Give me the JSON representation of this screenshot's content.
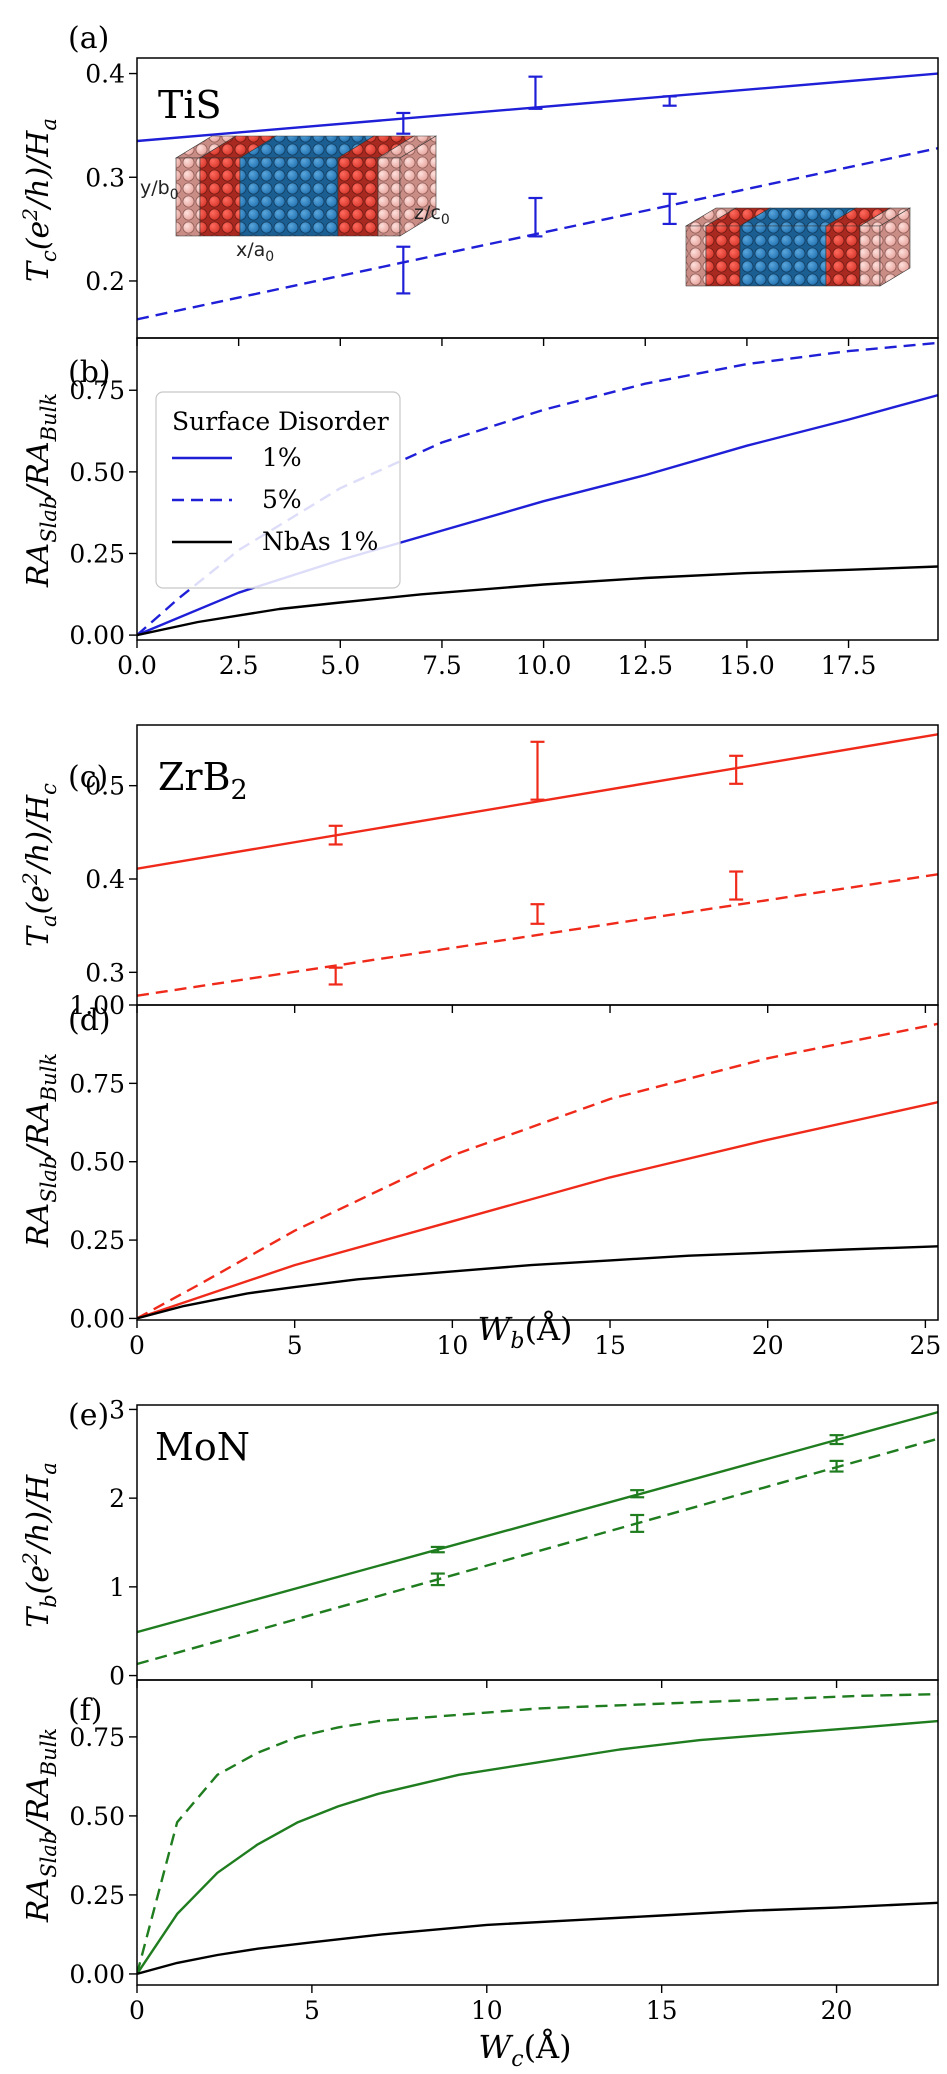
{
  "colors": {
    "TiS": "#1f1fd8",
    "ZrB2": "#f02a1a",
    "MoN": "#1f7d1f",
    "NbAs": "#000000"
  },
  "legend": {
    "title": "Surface Disorder",
    "entries": [
      {
        "label": "1%",
        "style": "solid"
      },
      {
        "label": "5%",
        "style": "dashed"
      },
      {
        "label": "NbAs 1%",
        "style": "solid-black"
      }
    ]
  },
  "inset_labels": {
    "y": "y/b",
    "y_sub": "0",
    "z": "z/c",
    "z_sub": "0",
    "x": "x/a",
    "x_sub": "0"
  },
  "chart_data": [
    {
      "panel_label": "(a)",
      "material": "TiS",
      "material_sub": "",
      "type": "line",
      "ylabel": "T_c(e^2/h)/H_a",
      "xlim": [
        0,
        19.7
      ],
      "ylim": [
        0.145,
        0.415
      ],
      "yticks": [
        0.2,
        0.3,
        0.4
      ],
      "yticklabels": [
        "0.2",
        "0.3",
        "0.4"
      ],
      "xticks": [
        0,
        2.5,
        5,
        7.5,
        10,
        12.5,
        15,
        17.5
      ],
      "xticklabels": [],
      "series": [
        {
          "style": "solid",
          "x": [
            0,
            19.7
          ],
          "y": [
            0.335,
            0.4
          ],
          "errorbars": [
            {
              "x": 6.55,
              "low": 0.342,
              "high": 0.362
            },
            {
              "x": 9.8,
              "low": 0.366,
              "high": 0.397
            },
            {
              "x": 13.1,
              "low": 0.369,
              "high": 0.378
            }
          ]
        },
        {
          "style": "dashed",
          "x": [
            0,
            19.7
          ],
          "y": [
            0.163,
            0.328
          ],
          "errorbars": [
            {
              "x": 6.55,
              "low": 0.188,
              "high": 0.233
            },
            {
              "x": 9.8,
              "low": 0.243,
              "high": 0.28
            },
            {
              "x": 13.1,
              "low": 0.255,
              "high": 0.284
            }
          ]
        }
      ]
    },
    {
      "panel_label": "(b)",
      "type": "line",
      "ylabel": "RA_Slab/RA_Bulk",
      "xlim": [
        0,
        19.7
      ],
      "ylim": [
        -0.015,
        0.91
      ],
      "yticks": [
        0,
        0.25,
        0.5,
        0.75
      ],
      "yticklabels": [
        "0.00",
        "0.25",
        "0.50",
        "0.75"
      ],
      "xticks": [
        0,
        2.5,
        5,
        7.5,
        10,
        12.5,
        15,
        17.5
      ],
      "xticklabels": [
        "0.0",
        "2.5",
        "5.0",
        "7.5",
        "10.0",
        "12.5",
        "15.0",
        "17.5"
      ],
      "series": [
        {
          "style": "solid",
          "x": [
            0,
            2.5,
            5,
            7.5,
            10,
            12.5,
            15,
            17.5,
            19.7
          ],
          "y": [
            0,
            0.13,
            0.23,
            0.32,
            0.41,
            0.49,
            0.58,
            0.66,
            0.735
          ]
        },
        {
          "style": "dashed",
          "x": [
            0,
            1,
            2.5,
            5,
            7.5,
            10,
            12.5,
            15,
            17.5,
            19.7
          ],
          "y": [
            0,
            0.11,
            0.26,
            0.45,
            0.59,
            0.69,
            0.77,
            0.83,
            0.87,
            0.895
          ]
        },
        {
          "style": "solid-black",
          "x": [
            0,
            1.5,
            3.5,
            5,
            7,
            10,
            12.5,
            15,
            17.5,
            19.7
          ],
          "y": [
            0,
            0.04,
            0.08,
            0.1,
            0.125,
            0.155,
            0.175,
            0.19,
            0.2,
            0.21
          ]
        }
      ]
    },
    {
      "panel_label": "(c)",
      "material": "ZrB",
      "material_sub": "2",
      "type": "line",
      "ylabel": "T_a(e^2/h)/H_c",
      "xlim": [
        0,
        25.4
      ],
      "ylim": [
        0.265,
        0.565
      ],
      "yticks": [
        0.3,
        0.4,
        0.5
      ],
      "yticklabels": [
        "0.3",
        "0.4",
        "0.5"
      ],
      "xticks": [
        0,
        5,
        10,
        15,
        20,
        25
      ],
      "xticklabels": [],
      "series": [
        {
          "style": "solid",
          "x": [
            0,
            25.4
          ],
          "y": [
            0.411,
            0.555
          ],
          "errorbars": [
            {
              "x": 6.3,
              "low": 0.437,
              "high": 0.457
            },
            {
              "x": 12.7,
              "low": 0.485,
              "high": 0.547
            },
            {
              "x": 19.0,
              "low": 0.502,
              "high": 0.532
            }
          ]
        },
        {
          "style": "dashed",
          "x": [
            0,
            25.4
          ],
          "y": [
            0.275,
            0.405
          ],
          "errorbars": [
            {
              "x": 6.3,
              "low": 0.287,
              "high": 0.305
            },
            {
              "x": 12.7,
              "low": 0.352,
              "high": 0.373
            },
            {
              "x": 19.0,
              "low": 0.378,
              "high": 0.408
            }
          ]
        }
      ]
    },
    {
      "panel_label": "(d)",
      "type": "line",
      "ylabel": "RA_Slab/RA_Bulk",
      "xlabel": "W_b(Å)",
      "xlim": [
        0,
        25.4
      ],
      "ylim": [
        -0.005,
        1.0
      ],
      "yticks": [
        0,
        0.25,
        0.5,
        0.75,
        1.0
      ],
      "yticklabels": [
        "0.00",
        "0.25",
        "0.50",
        "0.75",
        "1.00"
      ],
      "xticks": [
        0,
        5,
        10,
        15,
        20,
        25
      ],
      "xticklabels": [
        "0",
        "5",
        "10",
        "15",
        "20",
        "25"
      ],
      "series": [
        {
          "style": "solid",
          "x": [
            0,
            5,
            10,
            15,
            20,
            25.4
          ],
          "y": [
            0,
            0.17,
            0.31,
            0.45,
            0.57,
            0.69
          ]
        },
        {
          "style": "dashed",
          "x": [
            0,
            2,
            5,
            10,
            15,
            20,
            25.4
          ],
          "y": [
            0,
            0.11,
            0.28,
            0.52,
            0.7,
            0.83,
            0.94
          ]
        },
        {
          "style": "solid-black",
          "x": [
            0,
            1.5,
            3.5,
            5,
            7,
            10,
            12.5,
            15,
            17.5,
            20,
            22.5,
            25.4
          ],
          "y": [
            0,
            0.04,
            0.08,
            0.1,
            0.125,
            0.15,
            0.17,
            0.185,
            0.2,
            0.21,
            0.22,
            0.23
          ]
        }
      ]
    },
    {
      "panel_label": "(e)",
      "material": "MoN",
      "material_sub": "",
      "type": "line",
      "ylabel": "T_b(e^2/h)/H_a",
      "xlim": [
        0,
        22.9
      ],
      "ylim": [
        -0.05,
        3.05
      ],
      "yticks": [
        0,
        1,
        2,
        3
      ],
      "yticklabels": [
        "0",
        "1",
        "2",
        "3"
      ],
      "xticks": [
        0,
        5,
        10,
        15,
        20
      ],
      "xticklabels": [],
      "series": [
        {
          "style": "solid",
          "x": [
            0,
            22.9
          ],
          "y": [
            0.49,
            2.97
          ],
          "errorbars": [
            {
              "x": 8.6,
              "low": 1.39,
              "high": 1.45
            },
            {
              "x": 14.3,
              "low": 2.01,
              "high": 2.09
            },
            {
              "x": 20.0,
              "low": 2.61,
              "high": 2.71
            }
          ]
        },
        {
          "style": "dashed",
          "x": [
            0,
            22.9
          ],
          "y": [
            0.13,
            2.67
          ],
          "errorbars": [
            {
              "x": 8.6,
              "low": 1.02,
              "high": 1.15
            },
            {
              "x": 14.3,
              "low": 1.62,
              "high": 1.81
            },
            {
              "x": 20.0,
              "low": 2.3,
              "high": 2.42
            }
          ]
        }
      ]
    },
    {
      "panel_label": "(f)",
      "type": "line",
      "ylabel": "RA_Slab/RA_Bulk",
      "xlabel": "W_c(Å)",
      "xlim": [
        0,
        22.9
      ],
      "ylim": [
        -0.035,
        0.93
      ],
      "yticks": [
        0,
        0.25,
        0.5,
        0.75
      ],
      "yticklabels": [
        "0.00",
        "0.25",
        "0.50",
        "0.75"
      ],
      "xticks": [
        0,
        5,
        10,
        15,
        20
      ],
      "xticklabels": [
        "0",
        "5",
        "10",
        "15",
        "20"
      ],
      "series": [
        {
          "style": "solid",
          "x": [
            0,
            1.15,
            2.3,
            3.45,
            4.6,
            5.75,
            6.9,
            8.05,
            9.2,
            11.5,
            13.8,
            16.1,
            18.4,
            20.7,
            22.9
          ],
          "y": [
            0,
            0.19,
            0.32,
            0.41,
            0.48,
            0.53,
            0.57,
            0.6,
            0.63,
            0.67,
            0.71,
            0.74,
            0.76,
            0.78,
            0.8
          ]
        },
        {
          "style": "dashed",
          "x": [
            0,
            1.15,
            2.3,
            3.45,
            4.6,
            5.75,
            6.9,
            9.2,
            11.5,
            13.8,
            16.1,
            18.4,
            20.7,
            22.9
          ],
          "y": [
            0,
            0.48,
            0.63,
            0.7,
            0.75,
            0.78,
            0.8,
            0.82,
            0.84,
            0.85,
            0.86,
            0.87,
            0.88,
            0.885
          ]
        },
        {
          "style": "solid-black",
          "x": [
            0,
            1.15,
            2.3,
            3.45,
            5,
            7,
            10,
            12.5,
            15,
            17.5,
            20,
            22.9
          ],
          "y": [
            0,
            0.035,
            0.06,
            0.08,
            0.1,
            0.125,
            0.155,
            0.17,
            0.185,
            0.2,
            0.21,
            0.225
          ]
        }
      ]
    }
  ]
}
